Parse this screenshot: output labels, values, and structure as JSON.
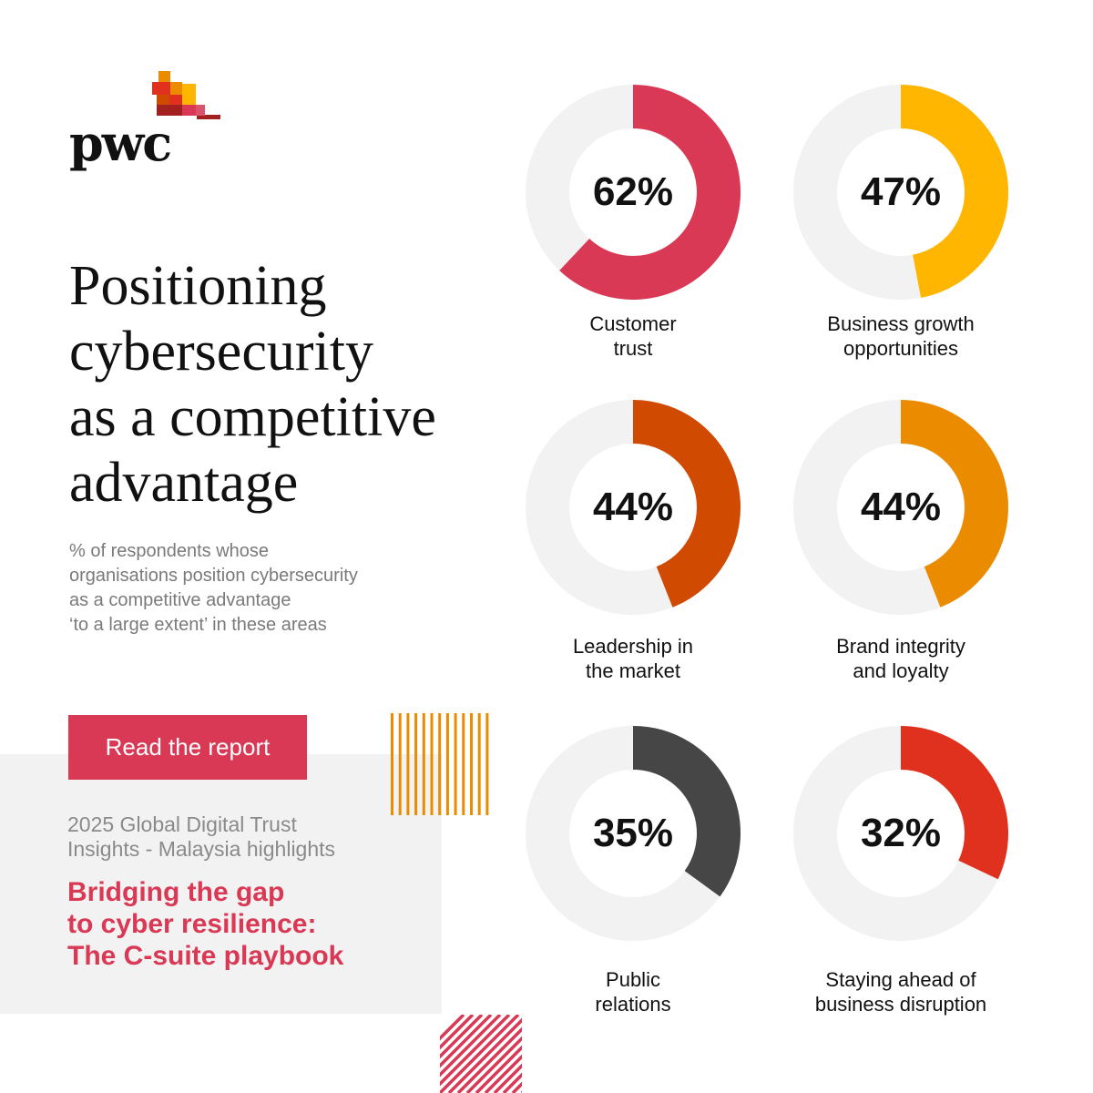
{
  "brand": {
    "name": "pwc"
  },
  "headline": {
    "line1": "Positioning",
    "line2": "cybersecurity",
    "line3": "as a competitive",
    "line4": "advantage"
  },
  "subtitle": {
    "line1": "% of respondents whose",
    "line2": "organisations position cybersecurity",
    "line3": "as a competitive advantage",
    "line4": "‘to a large extent’ in these areas"
  },
  "cta": {
    "label": "Read the report"
  },
  "report": {
    "subtitle_line1": "2025 Global Digital Trust",
    "subtitle_line2": "Insights - Malaysia highlights",
    "title_line1": "Bridging the gap",
    "title_line2": "to cyber resilience:",
    "title_line3": "The C-suite playbook"
  },
  "colors": {
    "track": "#f2f2f2",
    "accent_pink": "#d93954",
    "accent_yellow": "#ffb600",
    "accent_orange": "#eb8c00",
    "accent_tangerine": "#d04a02",
    "accent_red": "#e0301e",
    "accent_dark": "#464646"
  },
  "chart_data": [
    {
      "type": "pie",
      "label_line1": "Customer",
      "label_line2": "trust",
      "value": 62,
      "value_label": "62%",
      "color": "#d93954"
    },
    {
      "type": "pie",
      "label_line1": "Business growth",
      "label_line2": "opportunities",
      "value": 47,
      "value_label": "47%",
      "color": "#ffb600"
    },
    {
      "type": "pie",
      "label_line1": "Leadership in",
      "label_line2": "the market",
      "value": 44,
      "value_label": "44%",
      "color": "#d04a02"
    },
    {
      "type": "pie",
      "label_line1": "Brand integrity",
      "label_line2": "and loyalty",
      "value": 44,
      "value_label": "44%",
      "color": "#eb8c00"
    },
    {
      "type": "pie",
      "label_line1": "Public",
      "label_line2": "relations",
      "value": 35,
      "value_label": "35%",
      "color": "#464646"
    },
    {
      "type": "pie",
      "label_line1": "Staying ahead of",
      "label_line2": "business disruption",
      "value": 32,
      "value_label": "32%",
      "color": "#e0301e"
    }
  ]
}
